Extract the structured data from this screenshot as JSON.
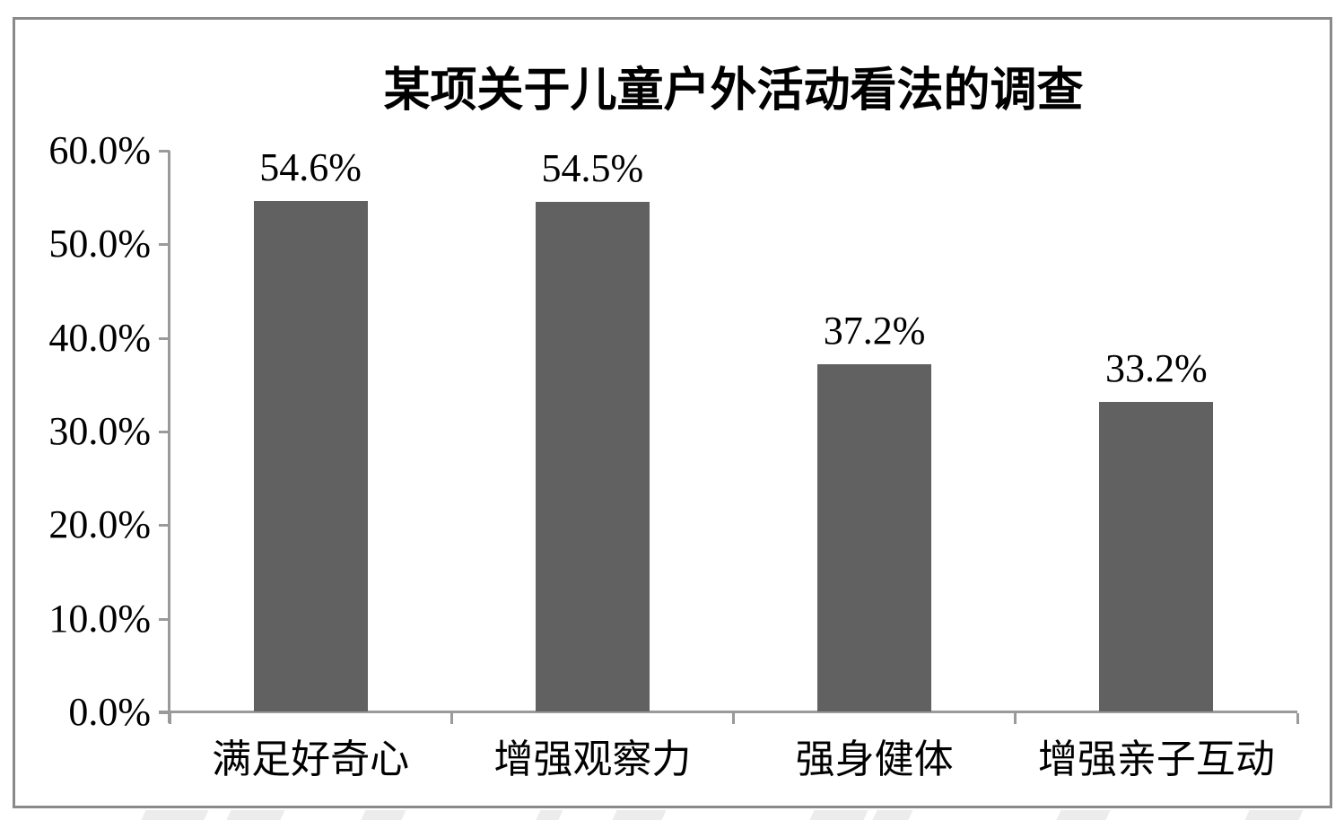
{
  "chart_data": {
    "type": "bar",
    "title": "某项关于儿童户外活动看法的调查",
    "categories": [
      "满足好奇心",
      "增强观察力",
      "强身健体",
      "增强亲子互动"
    ],
    "values": [
      54.6,
      54.5,
      37.2,
      33.2
    ],
    "value_labels": [
      "54.6%",
      "54.5%",
      "37.2%",
      "33.2%"
    ],
    "xlabel": "",
    "ylabel": "",
    "ylim": [
      0,
      60
    ],
    "y_tick_step": 10,
    "y_tick_labels": [
      "0.0%",
      "10.0%",
      "20.0%",
      "30.0%",
      "40.0%",
      "50.0%",
      "60.0%"
    ],
    "grid": "off",
    "legend": "none",
    "bar_color": "#616161",
    "axis_color": "#9a9a9a",
    "text_color": "#000000",
    "frame_border_color": "#8a8a8a"
  }
}
